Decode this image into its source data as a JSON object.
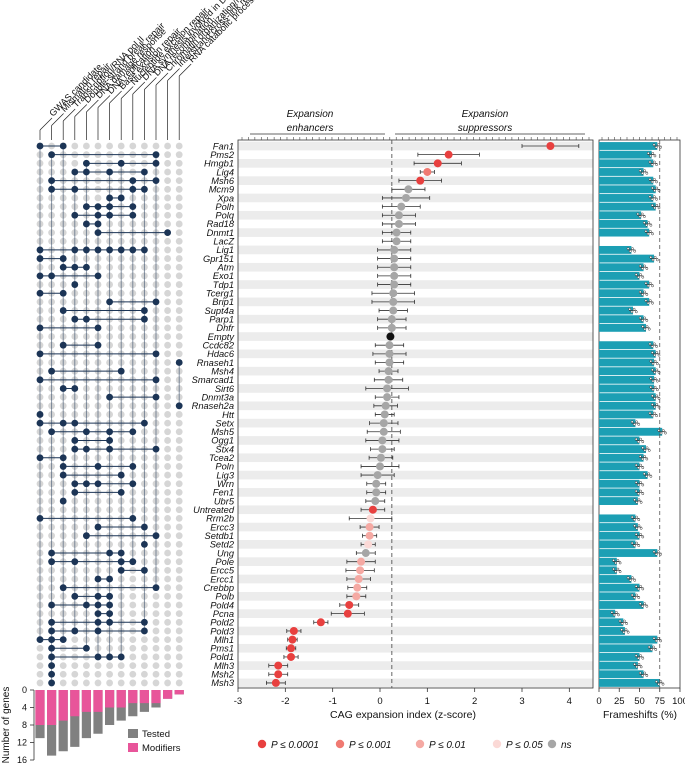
{
  "figure": {
    "categories": [
      "GWAS candidate",
      "Mismatch repair",
      "Transcription/RNA pol II",
      "Double-strand break repair",
      "DNA damage response",
      "DNA replication",
      "Base excision repair",
      "Nucleotide excision repair",
      "DNA synthesis involved in DNA repair",
      "DNA recombination",
      "Chromatin organization/remodeling",
      "Interstrand cross-link repair",
      "RNA catabolic process"
    ],
    "mid_labels": {
      "enhancers_line1": "Expansion",
      "enhancers_line2": "enhancers",
      "suppressors_line1": "Expansion",
      "suppressors_line2": "suppressors"
    },
    "legend": [
      {
        "label": "P ≤ 0.0001",
        "color": "#e8403f"
      },
      {
        "label": "P ≤ 0.001",
        "color": "#f07a72"
      },
      {
        "label": "P ≤ 0.01",
        "color": "#f5a9a3"
      },
      {
        "label": "P ≤ 0.05",
        "color": "#fbd9d6"
      },
      {
        "label": "ns",
        "color": "#a6a6a6"
      }
    ],
    "count_legend": [
      {
        "label": "Tested",
        "color": "#808080"
      },
      {
        "label": "Modifiers",
        "color": "#e8559a"
      }
    ]
  },
  "chart_data": [
    {
      "type": "scatter",
      "title": "",
      "xlabel": "CAG expansion index (z-score)",
      "ylabel": "",
      "xlim": [
        -3,
        4.5
      ],
      "xticks": [
        -3,
        -2,
        -1,
        0,
        1,
        2,
        3,
        4
      ],
      "reference_line": 0.25,
      "genes": [
        "Fan1",
        "Pms2",
        "Hmgb1",
        "Lig4",
        "Msh6",
        "Mcm9",
        "Xpa",
        "Polh",
        "Polq",
        "Rad18",
        "Dnmt1",
        "LacZ",
        "Lig1",
        "Gpr151",
        "Atm",
        "Exo1",
        "Tdp1",
        "Tcerg1",
        "Brip1",
        "Supt4a",
        "Parp1",
        "Dhfr",
        "Empty",
        "Ccdc82",
        "Hdac6",
        "Rnaseh1",
        "Msh4",
        "Smarcad1",
        "Sirt6",
        "Dnmt3a",
        "Rnaseh2a",
        "Htt",
        "Setx",
        "Msh5",
        "Ogg1",
        "Stx4",
        "Tcea2",
        "Poln",
        "Lig3",
        "Wrn",
        "Fen1",
        "Ubr5",
        "Untreated",
        "Rrm2b",
        "Ercc3",
        "Setdb1",
        "Setd2",
        "Ung",
        "Pole",
        "Ercc5",
        "Ercc1",
        "Crebbp",
        "Polb",
        "Pold4",
        "Pcna",
        "Pold2",
        "Pold3",
        "Mlh1",
        "Pms1",
        "Pold1",
        "Mlh3",
        "Msh2",
        "Msh3"
      ],
      "values": [
        3.6,
        1.45,
        1.22,
        1.0,
        0.85,
        0.6,
        0.55,
        0.45,
        0.4,
        0.4,
        0.35,
        0.35,
        0.3,
        0.3,
        0.3,
        0.3,
        0.3,
        0.28,
        0.28,
        0.28,
        0.25,
        0.25,
        0.22,
        0.2,
        0.2,
        0.2,
        0.18,
        0.18,
        0.15,
        0.15,
        0.12,
        0.1,
        0.08,
        0.08,
        0.05,
        0.05,
        0.02,
        0.0,
        -0.05,
        -0.08,
        -0.08,
        -0.1,
        -0.15,
        -0.2,
        -0.22,
        -0.22,
        -0.25,
        -0.3,
        -0.4,
        -0.42,
        -0.45,
        -0.48,
        -0.5,
        -0.65,
        -0.68,
        -1.25,
        -1.82,
        -1.85,
        -1.88,
        -1.88,
        -2.15,
        -2.15,
        -2.2
      ],
      "errors": [
        0.6,
        0.65,
        0.5,
        0.15,
        0.45,
        0.35,
        0.5,
        0.4,
        0.35,
        0.35,
        0.3,
        0.3,
        0.35,
        0.35,
        0.35,
        0.35,
        0.35,
        0.45,
        0.45,
        0.3,
        0.3,
        0.3,
        0.0,
        0.3,
        0.35,
        0.3,
        0.2,
        0.3,
        0.45,
        0.25,
        0.25,
        0.2,
        0.3,
        0.35,
        0.35,
        0.25,
        0.25,
        0.4,
        0.35,
        0.2,
        0.2,
        0.2,
        0.25,
        0.45,
        0.2,
        0.15,
        0.15,
        0.2,
        0.3,
        0.3,
        0.25,
        0.2,
        0.2,
        0.2,
        0.35,
        0.15,
        0.15,
        0.1,
        0.1,
        0.15,
        0.2,
        0.2,
        0.2
      ],
      "significance": [
        "p4",
        "p4",
        "p4",
        "p3",
        "p4",
        "ns",
        "ns",
        "ns",
        "ns",
        "ns",
        "ns",
        "ns",
        "ns",
        "ns",
        "ns",
        "ns",
        "ns",
        "ns",
        "ns",
        "ns",
        "ns",
        "ns",
        "ctrl",
        "ns",
        "ns",
        "ns",
        "ns",
        "ns",
        "ns",
        "ns",
        "ns",
        "ns",
        "ns",
        "ns",
        "ns",
        "ns",
        "ns",
        "ns",
        "ns",
        "ns",
        "ns",
        "ns",
        "p4",
        "p05",
        "p01",
        "p01",
        "p05",
        "ns",
        "p01",
        "p01",
        "p01",
        "p01",
        "p01",
        "p4",
        "p4",
        "p4",
        "p4",
        "p4",
        "p4",
        "p4",
        "p4",
        "p4",
        "p4"
      ]
    },
    {
      "type": "bar",
      "title": "",
      "xlabel": "Frameshifts (%)",
      "xlim": [
        0,
        100
      ],
      "xticks": [
        0,
        25,
        50,
        75,
        100
      ],
      "reference_line": 75,
      "values": [
        72,
        65,
        67,
        55,
        67,
        70,
        67,
        70,
        52,
        60,
        62,
        0,
        40,
        68,
        55,
        50,
        62,
        55,
        62,
        42,
        55,
        58,
        0,
        67,
        70,
        68,
        70,
        68,
        68,
        70,
        70,
        67,
        45,
        78,
        50,
        58,
        55,
        50,
        60,
        50,
        50,
        48,
        0,
        45,
        48,
        50,
        45,
        72,
        22,
        22,
        40,
        50,
        45,
        55,
        20,
        30,
        32,
        72,
        66,
        50,
        48,
        55,
        75
      ]
    },
    {
      "type": "bar",
      "title": "",
      "ylabel": "Number of genes",
      "ylim": [
        0,
        16
      ],
      "yticks": [
        0,
        4,
        8,
        12,
        16
      ],
      "series": [
        {
          "name": "Tested",
          "values": [
            11,
            15,
            14,
            13,
            11,
            10,
            8,
            7,
            6,
            5,
            4,
            2,
            1
          ]
        },
        {
          "name": "Modifiers",
          "values": [
            8,
            8,
            7,
            6,
            5,
            5,
            4,
            4,
            3,
            3,
            3,
            2,
            1
          ]
        }
      ]
    }
  ],
  "membership": [
    [
      0,
      2
    ],
    [
      1,
      10
    ],
    [
      4,
      7,
      10
    ],
    [
      3,
      4,
      6,
      9
    ],
    [
      1,
      8,
      10
    ],
    [
      1,
      3,
      8,
      9
    ],
    [
      6,
      7
    ],
    [
      4,
      5,
      6,
      8
    ],
    [
      3,
      5,
      6,
      8
    ],
    [
      4,
      5
    ],
    [
      5,
      11
    ],
    [],
    [
      0,
      3,
      4,
      5,
      6,
      7,
      8,
      9
    ],
    [
      0,
      2
    ],
    [
      2,
      3,
      4
    ],
    [
      0,
      1,
      5
    ],
    [
      3
    ],
    [
      0,
      2
    ],
    [
      6,
      10
    ],
    [
      2,
      9
    ],
    [
      3,
      4,
      9
    ],
    [
      0,
      5
    ],
    [],
    [
      2,
      5
    ],
    [
      0,
      10
    ],
    [
      12
    ],
    [
      1,
      7
    ],
    [
      0,
      10
    ],
    [
      2,
      3
    ],
    [
      6,
      10
    ],
    [
      12
    ],
    [
      0
    ],
    [
      0,
      2,
      3,
      9
    ],
    [
      1,
      4,
      6,
      8
    ],
    [
      3,
      6
    ],
    [
      3,
      4,
      6,
      10
    ],
    [
      0,
      2
    ],
    [
      2,
      5,
      8
    ],
    [
      2,
      7
    ],
    [
      3,
      4,
      5,
      8
    ],
    [
      3,
      7
    ],
    [
      2
    ],
    [],
    [
      0,
      8
    ],
    [
      5,
      9
    ],
    [
      4,
      10
    ],
    [
      9
    ],
    [
      1,
      6,
      7
    ],
    [
      1,
      3,
      7,
      8
    ],
    [
      7,
      9
    ],
    [
      5,
      6
    ],
    [
      2,
      10
    ],
    [
      3,
      5,
      6
    ],
    [
      1,
      4,
      5,
      6
    ],
    [
      5,
      6
    ],
    [
      1,
      5,
      6,
      9
    ],
    [
      1,
      3,
      5,
      9
    ],
    [
      0,
      1,
      2
    ],
    [
      1,
      4
    ],
    [
      1,
      5,
      6,
      7
    ],
    [
      1
    ],
    [
      1
    ],
    [
      1
    ]
  ]
}
